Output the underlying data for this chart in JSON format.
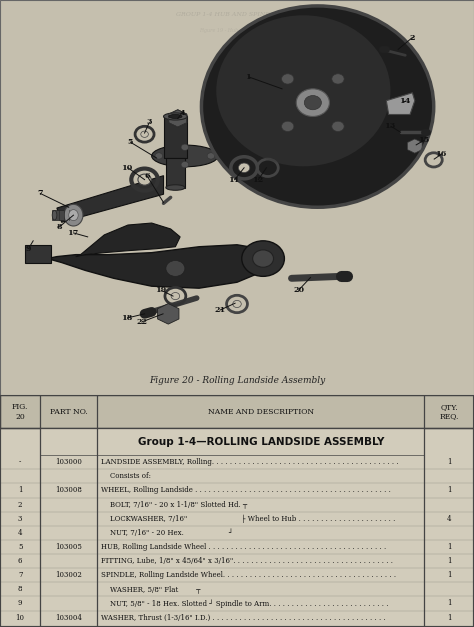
{
  "fig_caption": "Figure 20 - Rolling Landside Assembly",
  "group_title": "Group 1-4—ROLLING LANDSIDE ASSEMBLY",
  "rows": [
    [
      "-",
      "103000",
      "LANDSIDE ASSEMBLY, Rolling. . . . . . . . . . . . . . . . . . . . . . . . . . . . . . . . . . . . . . . . . .",
      "1"
    ],
    [
      "",
      "",
      "    Consists of:",
      ""
    ],
    [
      "1",
      "103008",
      "WHEEL, Rolling Landside . . . . . . . . . . . . . . . . . . . . . . . . . . . . . . . . . . . . . . . . . . . .",
      "1"
    ],
    [
      "2",
      "",
      "    BOLT, 7/16\" - 20 x 1-1/8\" Slotted Hd. ┬",
      ""
    ],
    [
      "3",
      "",
      "    LOCKWASHER, 7/16\"                        ├ Wheel to Hub . . . . . . . . . . . . . . . . . . . . . .",
      "4"
    ],
    [
      "4",
      "",
      "    NUT, 7/16\" - 20 Hex.                    ┘",
      ""
    ],
    [
      "5",
      "103005",
      "HUB, Rolling Landside Wheel . . . . . . . . . . . . . . . . . . . . . . . . . . . . . . . . . . . . . . . .",
      "1"
    ],
    [
      "6",
      "",
      "FITTING, Lube, 1/8\" x 45/64\" x 3/16\". . . . . . . . . . . . . . . . . . . . . . . . . . . . . . . . . . . .",
      "1"
    ],
    [
      "7",
      "103002",
      "SPINDLE, Rolling Landside Wheel. . . . . . . . . . . . . . . . . . . . . . . . . . . . . . . . . . . . . . .",
      "1"
    ],
    [
      "8",
      "",
      "    WASHER, 5/8\" Flat        ┬",
      ""
    ],
    [
      "9",
      "",
      "    NUT, 5/8\" - 18 Hex. Slotted ┘ Spindle to Arm. . . . . . . . . . . . . . . . . . . . . . . . . . .",
      "1"
    ],
    [
      "10",
      "103004",
      "WASHER, Thrust (1-3/16\" I.D.) . . . . . . . . . . . . . . . . . . . . . . . . . . . . . . . . . . . . . . .",
      "1"
    ]
  ],
  "page_bg": "#c9c3b0",
  "diagram_bg": "#c5bfae",
  "table_bg": "#d2ccbb",
  "header_bg": "#bfbaa8",
  "border_color": "#444444",
  "text_color": "#111111",
  "dark_part": "#2a2a2a",
  "mid_part": "#555555",
  "light_part": "#888888"
}
